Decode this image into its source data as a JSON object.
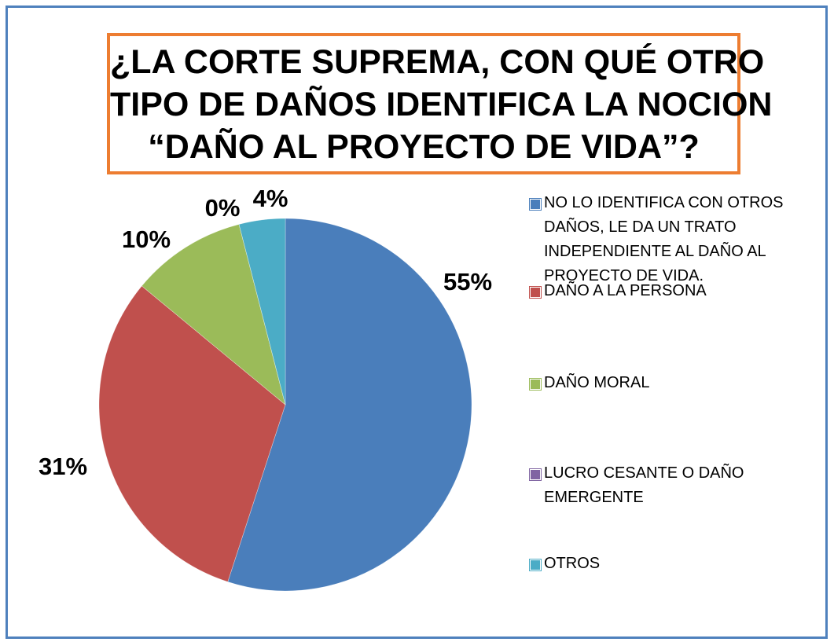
{
  "chart_data": {
    "type": "pie",
    "title": [
      "¿LA CORTE SUPREMA, CON QUÉ OTRO",
      "TIPO DE DAÑOS IDENTIFICA LA NOCION",
      "“DAÑO AL PROYECTO DE VIDA”?"
    ],
    "categories": [
      "NO LO IDENTIFICA CON OTROS DAÑOS, LE DA UN TRATO INDEPENDIENTE AL DAÑO AL PROYECTO DE VIDA.",
      "DAÑO A LA  PERSONA",
      "DAÑO MORAL",
      "LUCRO CESANTE O DAÑO EMERGENTE",
      "OTROS"
    ],
    "values": [
      55,
      31,
      10,
      0,
      4
    ],
    "value_labels": [
      "55%",
      "31%",
      "10%",
      "0%",
      "4%"
    ],
    "colors": [
      "#4a7ebb",
      "#c0504d",
      "#9bbb59",
      "#8064a2",
      "#4bacc6"
    ],
    "legend": "right"
  }
}
